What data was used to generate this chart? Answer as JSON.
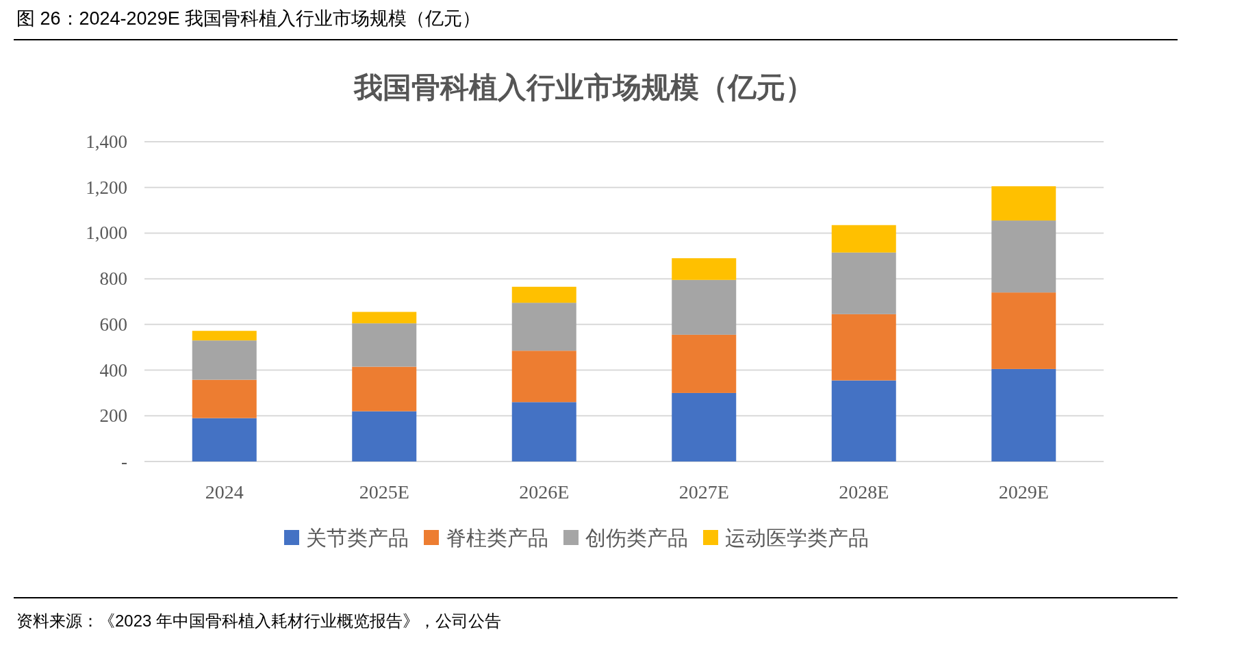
{
  "chart_data": {
    "type": "bar",
    "title": "图 26：2024-2029E 我国骨科植入行业市场规模（亿元）",
    "subtitle": "我国骨科植入行业市场规模（亿元）",
    "categories": [
      "2024",
      "2025E",
      "2026E",
      "2027E",
      "2028E",
      "2029E"
    ],
    "stacked": true,
    "series": [
      {
        "name": "关节类产品",
        "color": "#4472c4",
        "values": [
          190,
          220,
          260,
          300,
          355,
          405
        ]
      },
      {
        "name": "脊柱类产品",
        "color": "#ed7d31",
        "values": [
          168,
          195,
          225,
          255,
          290,
          335
        ]
      },
      {
        "name": "创伤类产品",
        "color": "#a5a5a5",
        "values": [
          172,
          190,
          210,
          240,
          270,
          315
        ]
      },
      {
        "name": "运动医学类产品",
        "color": "#ffc000",
        "values": [
          42,
          50,
          70,
          95,
          120,
          150
        ]
      }
    ],
    "ylim": [
      0,
      1400
    ],
    "yticks": [
      {
        "value": 0,
        "label": "-"
      },
      200,
      400,
      600,
      800,
      {
        "value": 1000,
        "label": "1,000"
      },
      {
        "value": 1200,
        "label": "1,200"
      },
      {
        "value": 1400,
        "label": "1,400"
      }
    ],
    "grid": "y",
    "legend": "bottom",
    "annotations": [
      "资料来源：《2023 年中国骨科植入耗材行业概览报告》，公司公告"
    ]
  }
}
